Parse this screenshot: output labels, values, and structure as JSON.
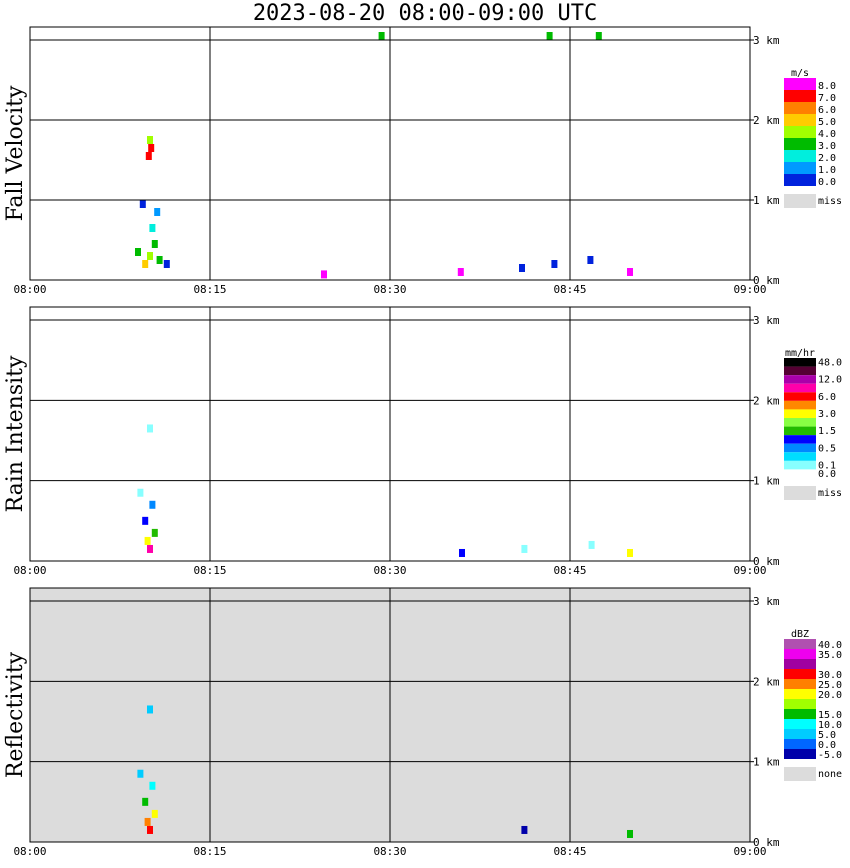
{
  "title": "2023-08-20  08:00-09:00 UTC",
  "time_ticks": [
    "08:00",
    "08:15",
    "08:30",
    "08:45",
    "09:00"
  ],
  "height_ticks": [
    "0 km",
    "1 km",
    "2 km",
    "3 km"
  ],
  "chart_data": [
    {
      "type": "heatmap",
      "ylabel": "Fall Velocity",
      "x_range": [
        "08:00",
        "09:00"
      ],
      "y_range_km": [
        0,
        3.0
      ],
      "background": "#ffffff",
      "colorbar": {
        "unit": "m/s",
        "entries": [
          {
            "label": "8.0",
            "color": "#ff00ff"
          },
          {
            "label": "7.0",
            "color": "#ff0000"
          },
          {
            "label": "6.0",
            "color": "#ff8000"
          },
          {
            "label": "5.0",
            "color": "#ffcc00"
          },
          {
            "label": "4.0",
            "color": "#a0ff00"
          },
          {
            "label": "3.0",
            "color": "#00bb00"
          },
          {
            "label": "2.0",
            "color": "#00eedd"
          },
          {
            "label": "1.0",
            "color": "#0099ff"
          },
          {
            "label": "0.0",
            "color": "#0022dd"
          }
        ],
        "missing": {
          "label": "miss",
          "color": "#dcdcdc"
        }
      },
      "cells": [
        {
          "t": 9.6,
          "h": 0.15,
          "c": 3
        },
        {
          "t": 10.0,
          "h": 0.25,
          "c": 4
        },
        {
          "t": 10.4,
          "h": 0.4,
          "c": 5
        },
        {
          "t": 10.2,
          "h": 0.6,
          "c": 6
        },
        {
          "t": 10.6,
          "h": 0.8,
          "c": 7
        },
        {
          "t": 9.4,
          "h": 0.9,
          "c": 8
        },
        {
          "t": 9.0,
          "h": 0.3,
          "c": 5
        },
        {
          "t": 10.8,
          "h": 0.2,
          "c": 5
        },
        {
          "t": 11.4,
          "h": 0.15,
          "c": 8
        },
        {
          "t": 10.1,
          "h": 1.6,
          "c": 1
        },
        {
          "t": 10.0,
          "h": 1.7,
          "c": 4
        },
        {
          "t": 9.9,
          "h": 1.5,
          "c": 1
        },
        {
          "t": 24.5,
          "h": 0.02,
          "c": 0
        },
        {
          "t": 35.9,
          "h": 0.05,
          "c": 0
        },
        {
          "t": 41.0,
          "h": 0.1,
          "c": 8
        },
        {
          "t": 43.7,
          "h": 0.15,
          "c": 8
        },
        {
          "t": 46.7,
          "h": 0.2,
          "c": 8
        },
        {
          "t": 50.0,
          "h": 0.05,
          "c": 0
        },
        {
          "t": 29.3,
          "h": 3.0,
          "c": 5
        },
        {
          "t": 43.3,
          "h": 3.0,
          "c": 5
        },
        {
          "t": 47.4,
          "h": 3.0,
          "c": 5
        }
      ]
    },
    {
      "type": "heatmap",
      "ylabel": "Rain Intensity",
      "x_range": [
        "08:00",
        "09:00"
      ],
      "y_range_km": [
        0,
        3.0
      ],
      "background": "#ffffff",
      "colorbar": {
        "unit": "mm/hr",
        "entries": [
          {
            "label": "48.0",
            "color": "#000000"
          },
          {
            "label": "",
            "color": "#550033"
          },
          {
            "label": "12.0",
            "color": "#aa00aa"
          },
          {
            "label": "",
            "color": "#ff00aa"
          },
          {
            "label": "6.0",
            "color": "#ff0000"
          },
          {
            "label": "",
            "color": "#ff8800"
          },
          {
            "label": "3.0",
            "color": "#ffff00"
          },
          {
            "label": "",
            "color": "#88ff44"
          },
          {
            "label": "1.5",
            "color": "#22bb00"
          },
          {
            "label": "",
            "color": "#0000ff"
          },
          {
            "label": "0.5",
            "color": "#0088ff"
          },
          {
            "label": "",
            "color": "#00ddff"
          },
          {
            "label": "0.1",
            "color": "#88ffff"
          },
          {
            "label": "0.0",
            "color": "#ffffff"
          }
        ],
        "missing": {
          "label": "miss",
          "color": "#dcdcdc"
        }
      },
      "cells": [
        {
          "t": 10.0,
          "h": 0.1,
          "c": 3
        },
        {
          "t": 9.8,
          "h": 0.2,
          "c": 6
        },
        {
          "t": 10.4,
          "h": 0.3,
          "c": 8
        },
        {
          "t": 9.6,
          "h": 0.45,
          "c": 9
        },
        {
          "t": 10.2,
          "h": 0.65,
          "c": 10
        },
        {
          "t": 9.2,
          "h": 0.8,
          "c": 12
        },
        {
          "t": 10.0,
          "h": 1.6,
          "c": 12
        },
        {
          "t": 36.0,
          "h": 0.05,
          "c": 9
        },
        {
          "t": 41.2,
          "h": 0.1,
          "c": 12
        },
        {
          "t": 46.8,
          "h": 0.15,
          "c": 12
        },
        {
          "t": 50.0,
          "h": 0.05,
          "c": 6
        }
      ]
    },
    {
      "type": "heatmap",
      "ylabel": "Reflectivity",
      "x_range": [
        "08:00",
        "09:00"
      ],
      "y_range_km": [
        0,
        3.0
      ],
      "background": "#dcdcdc",
      "colorbar": {
        "unit": "dBZ",
        "entries": [
          {
            "label": "40.0",
            "color": "#b050b0"
          },
          {
            "label": "35.0",
            "color": "#ee00ee"
          },
          {
            "label": "",
            "color": "#a000a0"
          },
          {
            "label": "30.0",
            "color": "#ff0000"
          },
          {
            "label": "25.0",
            "color": "#ff8000"
          },
          {
            "label": "20.0",
            "color": "#ffff00"
          },
          {
            "label": "",
            "color": "#a0ff00"
          },
          {
            "label": "15.0",
            "color": "#00bb00"
          },
          {
            "label": "10.0",
            "color": "#00ffff"
          },
          {
            "label": "5.0",
            "color": "#00ccff"
          },
          {
            "label": "0.0",
            "color": "#0066ff"
          },
          {
            "label": "-5.0",
            "color": "#0000aa"
          }
        ],
        "missing": {
          "label": "none",
          "color": "#dcdcdc"
        }
      },
      "cells": [
        {
          "t": 10.0,
          "h": 0.1,
          "c": 3
        },
        {
          "t": 9.8,
          "h": 0.2,
          "c": 4
        },
        {
          "t": 10.4,
          "h": 0.3,
          "c": 5
        },
        {
          "t": 9.6,
          "h": 0.45,
          "c": 7
        },
        {
          "t": 10.2,
          "h": 0.65,
          "c": 8
        },
        {
          "t": 9.2,
          "h": 0.8,
          "c": 9
        },
        {
          "t": 10.0,
          "h": 1.6,
          "c": 9
        },
        {
          "t": 41.2,
          "h": 0.1,
          "c": 11
        },
        {
          "t": 50.0,
          "h": 0.05,
          "c": 7
        }
      ]
    }
  ]
}
